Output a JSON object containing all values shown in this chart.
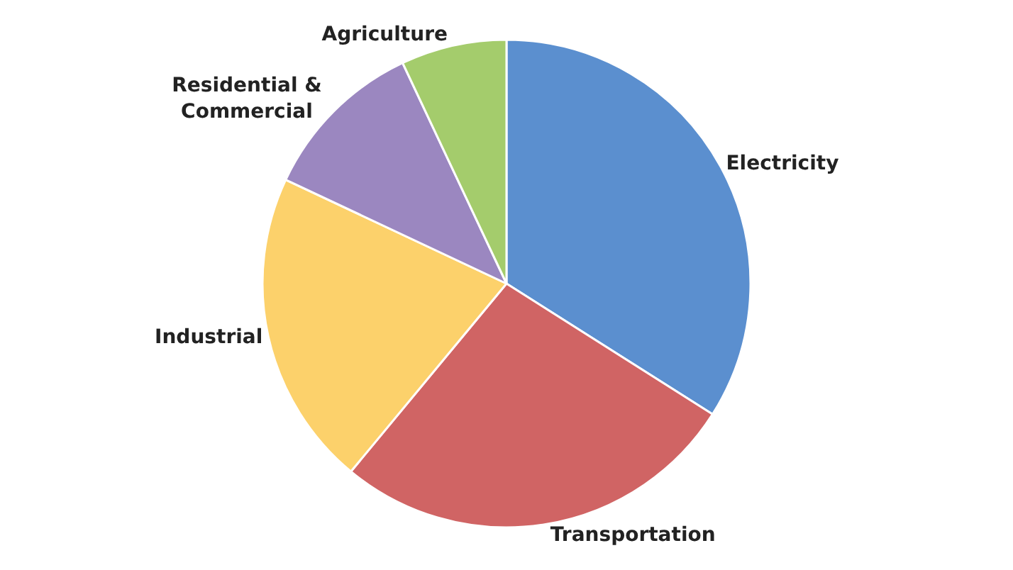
{
  "chart_data": {
    "type": "pie",
    "categories": [
      "Electricity",
      "Transportation",
      "Industrial",
      "Residential &\nCommercial",
      "Agriculture"
    ],
    "values": [
      34,
      27,
      21,
      11,
      7
    ],
    "colors": [
      "#5b8fcf",
      "#d06464",
      "#fcd16b",
      "#9b87c0",
      "#a4cc6c"
    ],
    "legend": false
  }
}
